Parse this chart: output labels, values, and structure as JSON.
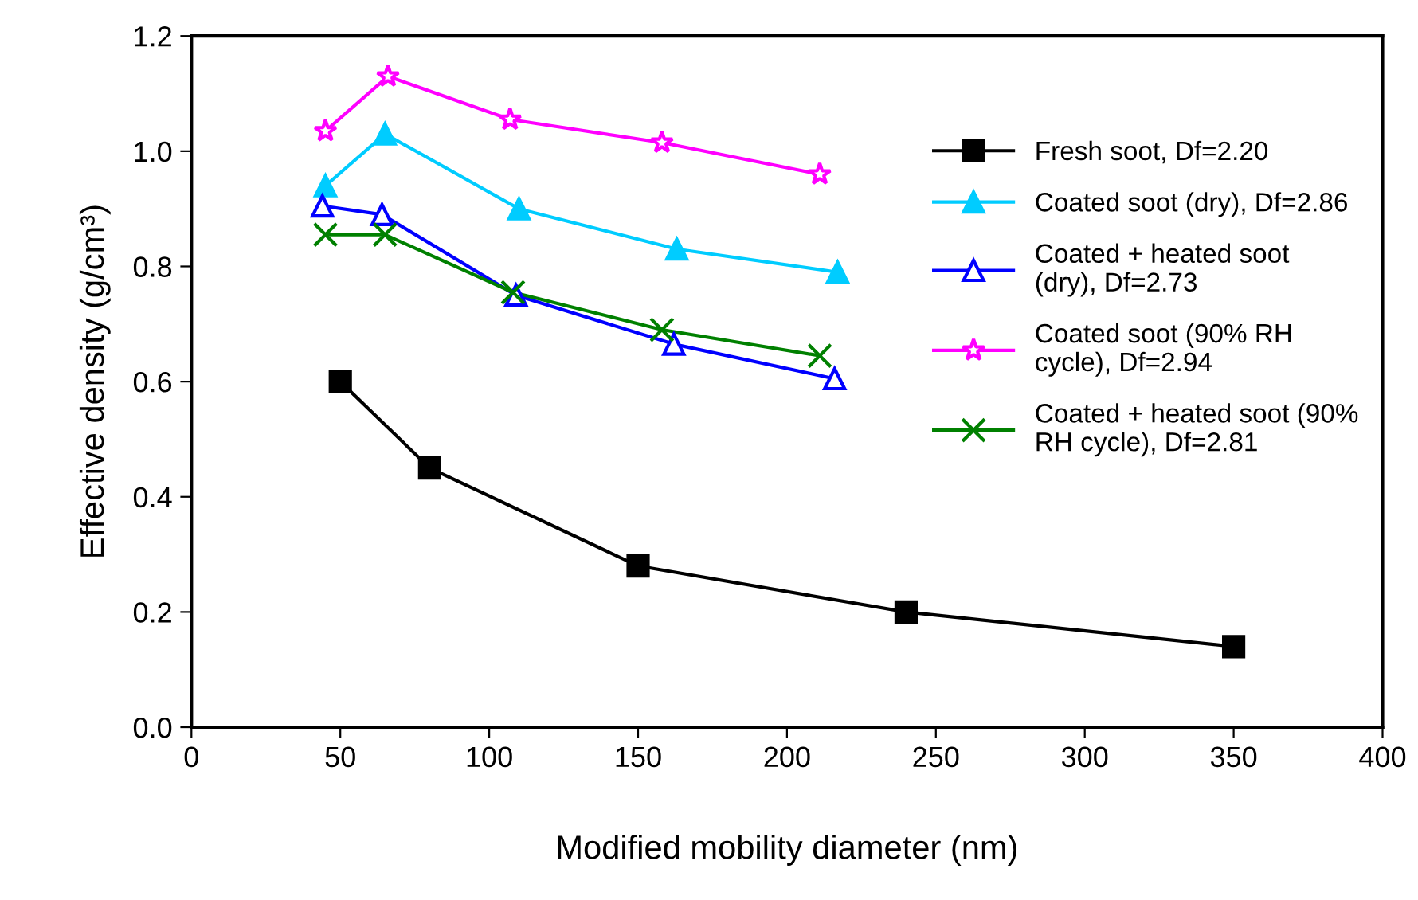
{
  "chart_data": {
    "type": "line",
    "xlabel": "Modified mobility diameter (nm)",
    "ylabel": "Effective density (g/cm³)",
    "xlim": [
      0,
      400
    ],
    "xticks": [
      0,
      50,
      100,
      150,
      200,
      250,
      300,
      350,
      400
    ],
    "ylim": [
      0,
      1.2
    ],
    "yticks": [
      {
        "value": 0,
        "label": "0.0"
      },
      {
        "value": 0.2,
        "label": "0.2"
      },
      {
        "value": 0.4,
        "label": "0.4"
      },
      {
        "value": 0.6,
        "label": "0.6"
      },
      {
        "value": 0.8,
        "label": "0.8"
      },
      {
        "value": 1.0,
        "label": "1.0"
      },
      {
        "value": 1.2,
        "label": "1.2"
      }
    ],
    "grid": false,
    "legend": "right",
    "line_style": "solid",
    "series": [
      {
        "name": "Fresh soot, Df=2.20",
        "color": "#000000",
        "marker": "square",
        "x": [
          50,
          80,
          150,
          240,
          350
        ],
        "values": [
          0.6,
          0.45,
          0.28,
          0.2,
          0.14
        ]
      },
      {
        "name": "Coated soot (dry), Df=2.86",
        "color": "#00ccff",
        "marker": "triangle",
        "x": [
          45,
          65,
          110,
          163,
          217
        ],
        "values": [
          0.94,
          1.03,
          0.9,
          0.83,
          0.79
        ]
      },
      {
        "name": "Coated + heated soot (dry), Df=2.73",
        "color": "#0000ff",
        "marker": "triangle_open",
        "x": [
          44,
          64,
          109,
          162,
          216
        ],
        "values": [
          0.905,
          0.89,
          0.75,
          0.665,
          0.605
        ]
      },
      {
        "name": "Coated soot (90% RH cycle), Df=2.94",
        "color": "#ff00ff",
        "marker": "star",
        "x": [
          45,
          66,
          107,
          158,
          211
        ],
        "values": [
          1.035,
          1.13,
          1.055,
          1.015,
          0.96
        ]
      },
      {
        "name": "Coated + heated soot (90% RH cycle), Df=2.81",
        "color": "#008000",
        "marker": "cross",
        "x": [
          45,
          65,
          108,
          158,
          211
        ],
        "values": [
          0.855,
          0.855,
          0.755,
          0.69,
          0.645
        ]
      }
    ]
  }
}
